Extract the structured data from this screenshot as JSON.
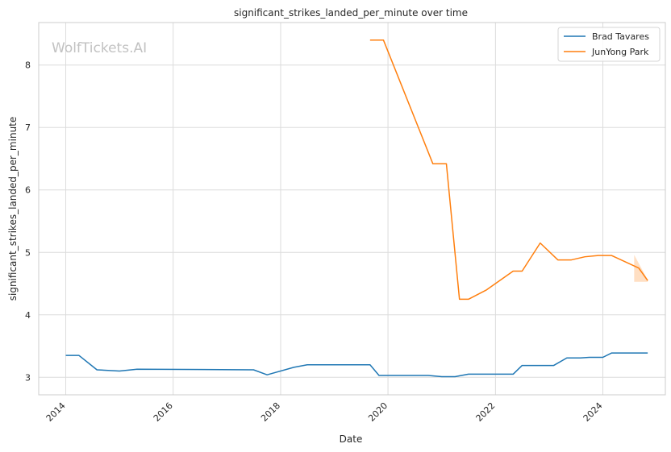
{
  "chart_data": {
    "type": "line",
    "title": "significant_strikes_landed_per_minute over time",
    "xlabel": "Date",
    "ylabel": "significant_strikes_landed_per_minute",
    "watermark": "WolfTickets.AI",
    "xlim": [
      "2013-07-01",
      "2025-03-01"
    ],
    "ylim": [
      2.72,
      8.68
    ],
    "x_ticks": [
      "2014",
      "2016",
      "2018",
      "2020",
      "2022",
      "2024"
    ],
    "y_ticks": [
      3,
      4,
      5,
      6,
      7,
      8
    ],
    "grid": true,
    "legend_position": "top-right",
    "series": [
      {
        "name": "Brad Tavares",
        "color": "#1f77b4",
        "points": [
          [
            "2014-01-01",
            3.35
          ],
          [
            "2014-04-01",
            3.35
          ],
          [
            "2014-08-01",
            3.12
          ],
          [
            "2015-01-01",
            3.1
          ],
          [
            "2015-05-01",
            3.13
          ],
          [
            "2017-07-01",
            3.12
          ],
          [
            "2017-10-01",
            3.04
          ],
          [
            "2018-04-01",
            3.16
          ],
          [
            "2018-07-01",
            3.2
          ],
          [
            "2019-09-01",
            3.2
          ],
          [
            "2019-11-01",
            3.03
          ],
          [
            "2020-10-01",
            3.03
          ],
          [
            "2021-01-01",
            3.01
          ],
          [
            "2021-04-01",
            3.01
          ],
          [
            "2021-07-01",
            3.05
          ],
          [
            "2022-05-01",
            3.05
          ],
          [
            "2022-07-01",
            3.19
          ],
          [
            "2023-02-01",
            3.19
          ],
          [
            "2023-05-01",
            3.31
          ],
          [
            "2023-08-01",
            3.31
          ],
          [
            "2023-10-01",
            3.32
          ],
          [
            "2024-01-01",
            3.32
          ],
          [
            "2024-03-01",
            3.39
          ],
          [
            "2024-11-01",
            3.39
          ]
        ]
      },
      {
        "name": "JunYong Park",
        "color": "#ff7f0e",
        "points": [
          [
            "2019-09-01",
            8.4
          ],
          [
            "2019-12-01",
            8.4
          ],
          [
            "2020-11-01",
            6.42
          ],
          [
            "2021-02-01",
            6.42
          ],
          [
            "2021-05-01",
            4.25
          ],
          [
            "2021-07-01",
            4.25
          ],
          [
            "2021-11-01",
            4.4
          ],
          [
            "2022-05-01",
            4.7
          ],
          [
            "2022-07-01",
            4.7
          ],
          [
            "2022-11-01",
            5.15
          ],
          [
            "2023-03-01",
            4.88
          ],
          [
            "2023-06-01",
            4.88
          ],
          [
            "2023-09-01",
            4.93
          ],
          [
            "2023-12-01",
            4.95
          ],
          [
            "2024-03-01",
            4.95
          ],
          [
            "2024-09-01",
            4.75
          ],
          [
            "2024-11-01",
            4.55
          ]
        ],
        "band": [
          [
            "2024-08-01",
            4.53,
            4.96
          ],
          [
            "2024-11-01",
            4.53,
            4.56
          ]
        ]
      }
    ]
  }
}
